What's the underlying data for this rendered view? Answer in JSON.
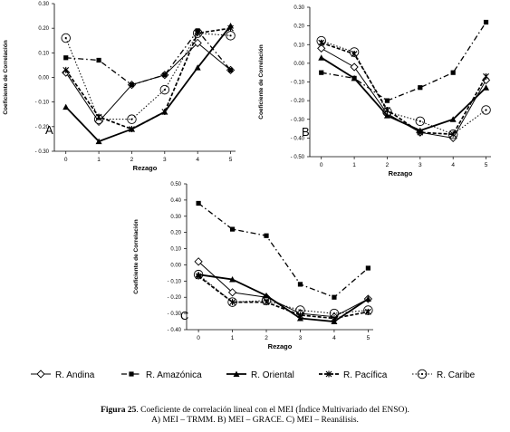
{
  "caption": {
    "bold": "Figura 25",
    "line1": ". Coeficiente de correlación lineal con el MEI (Índice Multivariado del ENSO).",
    "line2": "A) MEI – TRMM. B) MEI – GRACE. C) MEI – Reanálisis."
  },
  "legend": {
    "items": [
      {
        "key": "andina",
        "label": "R. Andina"
      },
      {
        "key": "amazonica",
        "label": "R. Amazónica"
      },
      {
        "key": "oriental",
        "label": "R. Oriental"
      },
      {
        "key": "pacifica",
        "label": "R. Pacífica"
      },
      {
        "key": "caribe",
        "label": "R. Caribe"
      }
    ]
  },
  "chart_data": [
    {
      "type": "line",
      "panel_label": "A",
      "xlabel": "Rezago",
      "ylabel": "Coeficiente de Correlación",
      "x": [
        0,
        1,
        2,
        3,
        4,
        5
      ],
      "ylim": [
        -0.3,
        0.3
      ],
      "yticks": [
        0.3,
        0.2,
        0.1,
        0.0,
        -0.1,
        -0.2,
        -0.3
      ],
      "ytick_labels": [
        "0.30",
        "0.20",
        "0.10",
        "0.00",
        "- 0.10",
        "- 0.20",
        "- 0.30"
      ],
      "series": [
        {
          "key": "andina",
          "values": [
            0.02,
            -0.18,
            -0.03,
            0.01,
            0.14,
            0.03
          ]
        },
        {
          "key": "amazonica",
          "values": [
            0.08,
            0.07,
            -0.03,
            0.01,
            0.19,
            0.03
          ]
        },
        {
          "key": "oriental",
          "values": [
            -0.12,
            -0.26,
            -0.21,
            -0.14,
            0.04,
            0.21
          ]
        },
        {
          "key": "pacifica",
          "values": [
            0.03,
            -0.16,
            -0.21,
            -0.14,
            0.18,
            0.2
          ]
        },
        {
          "key": "caribe",
          "values": [
            0.16,
            -0.17,
            -0.17,
            -0.05,
            0.18,
            0.17
          ]
        }
      ]
    },
    {
      "type": "line",
      "panel_label": "B",
      "xlabel": "Rezago",
      "ylabel": "Coeficiente de Correlación",
      "x": [
        0,
        1,
        2,
        3,
        4,
        5
      ],
      "ylim": [
        -0.5,
        0.3
      ],
      "yticks": [
        0.3,
        0.2,
        0.1,
        0.0,
        -0.1,
        -0.2,
        -0.3,
        -0.4,
        -0.5
      ],
      "ytick_labels": [
        "0.30",
        "0.20",
        "0.10",
        "0.00",
        "- 0.10",
        "- 0.20",
        "- 0.30",
        "- 0.40",
        "- 0.50"
      ],
      "series": [
        {
          "key": "andina",
          "values": [
            0.08,
            -0.02,
            -0.27,
            -0.37,
            -0.4,
            -0.09
          ]
        },
        {
          "key": "amazonica",
          "values": [
            -0.05,
            -0.08,
            -0.2,
            -0.13,
            -0.05,
            0.22
          ]
        },
        {
          "key": "oriental",
          "values": [
            0.03,
            -0.08,
            -0.28,
            -0.36,
            -0.3,
            -0.13
          ]
        },
        {
          "key": "pacifica",
          "values": [
            0.11,
            0.05,
            -0.25,
            -0.37,
            -0.38,
            -0.07
          ]
        },
        {
          "key": "caribe",
          "values": [
            0.12,
            0.06,
            -0.26,
            -0.31,
            -0.38,
            -0.25
          ]
        }
      ]
    },
    {
      "type": "line",
      "panel_label": "C",
      "xlabel": "Rezago",
      "ylabel": "Coeficiente de Correlación",
      "x": [
        0,
        1,
        2,
        3,
        4,
        5
      ],
      "ylim": [
        -0.4,
        0.5
      ],
      "yticks": [
        0.5,
        0.4,
        0.3,
        0.2,
        0.1,
        0.0,
        -0.1,
        -0.2,
        -0.3,
        -0.4
      ],
      "ytick_labels": [
        "0.50",
        "0.40",
        "0.30",
        "0.20",
        "0.10",
        "0.00",
        "- 0.10",
        "- 0.20",
        "- 0.30",
        "- 0.40"
      ],
      "series": [
        {
          "key": "andina",
          "values": [
            0.02,
            -0.17,
            -0.2,
            -0.3,
            -0.32,
            -0.21
          ]
        },
        {
          "key": "amazonica",
          "values": [
            0.38,
            0.22,
            0.18,
            -0.12,
            -0.2,
            -0.02
          ]
        },
        {
          "key": "oriental",
          "values": [
            -0.06,
            -0.09,
            -0.19,
            -0.33,
            -0.35,
            -0.21
          ]
        },
        {
          "key": "pacifica",
          "values": [
            -0.07,
            -0.23,
            -0.23,
            -0.31,
            -0.33,
            -0.29
          ]
        },
        {
          "key": "caribe",
          "values": [
            -0.06,
            -0.23,
            -0.22,
            -0.28,
            -0.3,
            -0.28
          ]
        }
      ]
    }
  ]
}
